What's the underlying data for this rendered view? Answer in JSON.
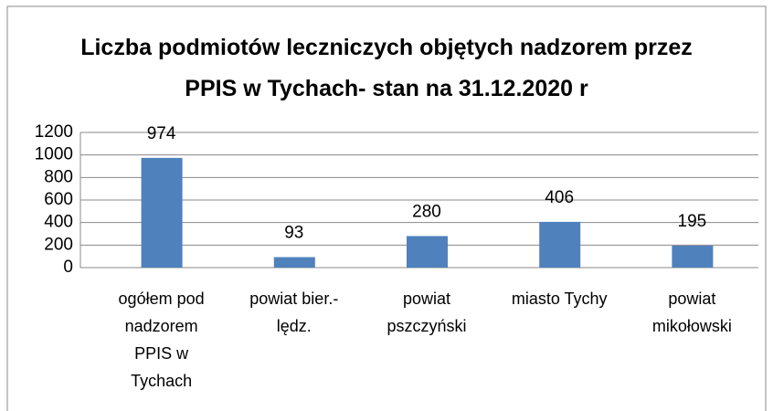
{
  "chart_data": {
    "type": "bar",
    "title": "Liczba podmiotów leczniczych objętych nadzorem przez PPIS w Tychach- stan na 31.12.2020 r",
    "categories": [
      "ogółem pod nadzorem PPIS w Tychach",
      "powiat bier.-lędz.",
      "powiat pszczyński",
      "miasto Tychy",
      "powiat mikołowski"
    ],
    "values": [
      974,
      93,
      280,
      406,
      195
    ],
    "color": "#4f81bd",
    "ylim": [
      0,
      1200
    ],
    "yticks": [
      0,
      200,
      400,
      600,
      800,
      1000,
      1200
    ],
    "grid": true
  }
}
